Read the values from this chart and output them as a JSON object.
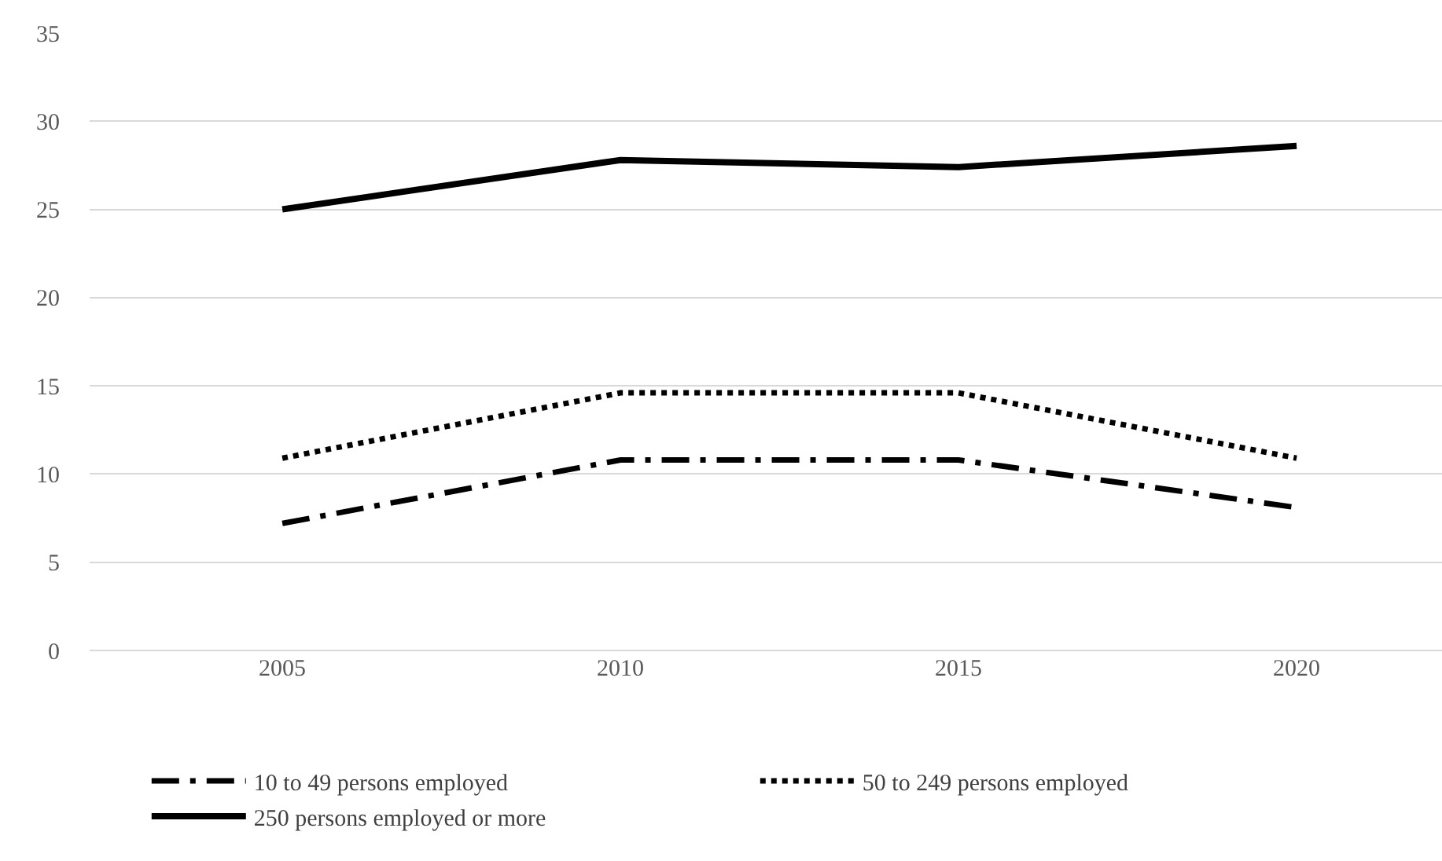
{
  "chart_data": {
    "type": "line",
    "categories": [
      "2005",
      "2010",
      "2015",
      "2020"
    ],
    "series": [
      {
        "name": "10 to 49 persons employed",
        "color": "#000000",
        "line_style": "dashdot",
        "values": [
          7.2,
          10.8,
          10.8,
          8.1
        ]
      },
      {
        "name": "50 to 249 persons employed",
        "color": "#000000",
        "line_style": "dotted",
        "values": [
          10.9,
          14.6,
          14.6,
          10.9
        ]
      },
      {
        "name": "250 persons employed or more",
        "color": "#000000",
        "line_style": "solid",
        "values": [
          25.0,
          27.8,
          27.4,
          28.6
        ]
      }
    ],
    "ylim": [
      0,
      35
    ],
    "yticks": [
      0,
      5,
      10,
      15,
      20,
      25,
      30,
      35
    ],
    "grid": "y",
    "legend": "bottom",
    "marker": "none"
  }
}
